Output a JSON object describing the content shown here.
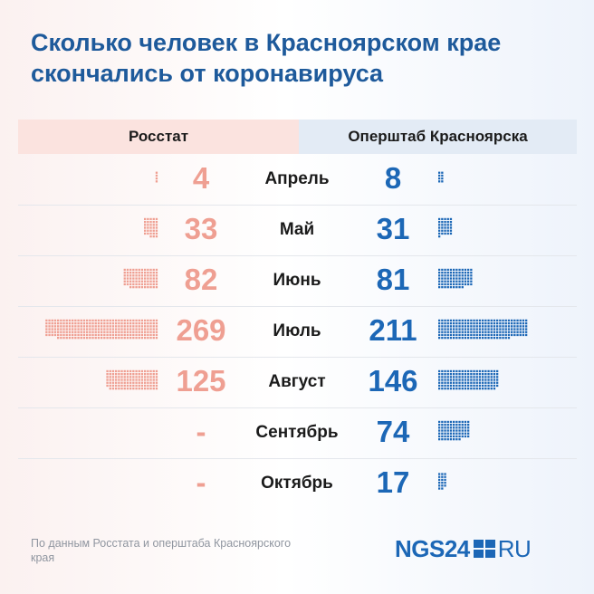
{
  "title": "Сколько человек в Красноярском крае скончались от коронавируса",
  "headers": {
    "left": "Росстат",
    "right": "Оперштаб Красноярска"
  },
  "colors": {
    "left": "#ef9f92",
    "right": "#1c67b6",
    "title": "#1e5a9b"
  },
  "chart_data": {
    "type": "table",
    "title": "Сколько человек в Красноярском крае скончались от коронавируса",
    "categories": [
      "Апрель",
      "Май",
      "Июнь",
      "Июль",
      "Август",
      "Сентябрь",
      "Октябрь"
    ],
    "series": [
      {
        "name": "Росстат",
        "values": [
          4,
          33,
          82,
          269,
          125,
          null,
          null
        ],
        "labels": [
          "4",
          "33",
          "82",
          "269",
          "125",
          "-",
          "-"
        ]
      },
      {
        "name": "Оперштаб Красноярска",
        "values": [
          8,
          31,
          81,
          211,
          146,
          74,
          17
        ],
        "labels": [
          "8",
          "31",
          "81",
          "211",
          "146",
          "74",
          "17"
        ]
      }
    ]
  },
  "source": "По данным Росстата и оперштаба Красноярского края",
  "logo": {
    "left": "NGS24",
    "right": "RU"
  }
}
